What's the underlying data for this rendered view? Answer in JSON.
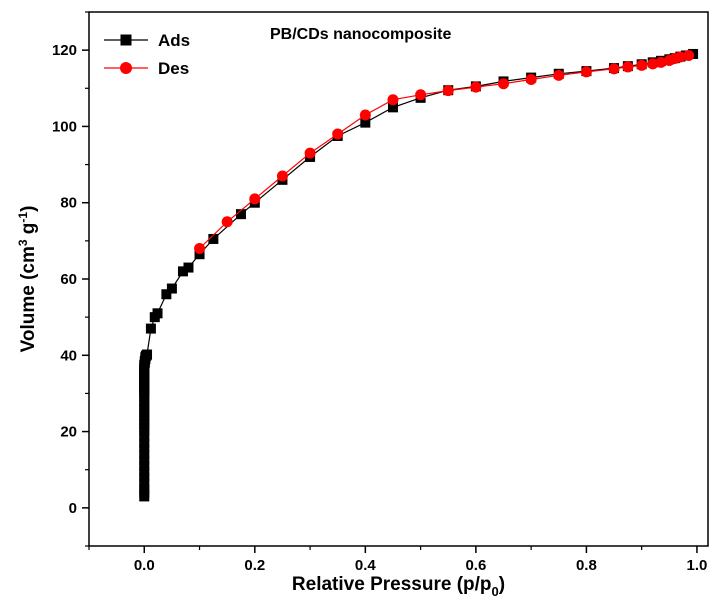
{
  "chart_data": {
    "type": "line",
    "title": "PB/CDs nanocomposite",
    "xlabel": {
      "main": "Relative Pressure (p/p",
      "sub": "0",
      "close": ")"
    },
    "ylabel": {
      "p1": "Volume (cm",
      "sup1": "3",
      "p2": " g",
      "sup2": "-1",
      "p3": ")"
    },
    "xlim": [
      -0.1,
      1.02
    ],
    "ylim": [
      -10,
      130
    ],
    "x_ticks": [
      "0.0",
      "0.2",
      "0.4",
      "0.6",
      "0.8",
      "1.0"
    ],
    "x_tick_values": [
      0.0,
      0.2,
      0.4,
      0.6,
      0.8,
      1.0
    ],
    "y_ticks": [
      "0",
      "20",
      "40",
      "60",
      "80",
      "100",
      "120"
    ],
    "y_tick_values": [
      0,
      20,
      40,
      60,
      80,
      100,
      120
    ],
    "legend_position": "top-left",
    "grid": false,
    "series": [
      {
        "name": "Ads",
        "color": "#000000",
        "marker": "square",
        "x": [
          0.0,
          0.0,
          0.0,
          0.0,
          0.0,
          0.0,
          0.0,
          0.0,
          0.0,
          0.0,
          0.0,
          0.0,
          0.0,
          0.0,
          0.0,
          0.0,
          0.0,
          0.0,
          0.0,
          0.0,
          0.0,
          0.0,
          0.0,
          0.0,
          0.0,
          0.0,
          0.0,
          0.0,
          0.0,
          0.0,
          0.0,
          0.0,
          0.0,
          0.0,
          0.0,
          0.0,
          0.0,
          0.0,
          0.001,
          0.001,
          0.002,
          0.002,
          0.003,
          0.004,
          0.005,
          0.012,
          0.019,
          0.024,
          0.04,
          0.05,
          0.07,
          0.08,
          0.1,
          0.125,
          0.175,
          0.2,
          0.25,
          0.3,
          0.35,
          0.4,
          0.45,
          0.5,
          0.55,
          0.6,
          0.65,
          0.7,
          0.75,
          0.8,
          0.85,
          0.875,
          0.9,
          0.92,
          0.935,
          0.95,
          0.96,
          0.97,
          0.98,
          0.993
        ],
        "y": [
          3,
          4,
          5,
          6.5,
          8,
          9.5,
          11,
          12.5,
          14,
          15.5,
          17,
          18.5,
          20,
          21,
          22,
          23,
          24,
          25,
          26,
          27,
          28,
          29,
          30,
          30.5,
          31,
          31.5,
          32,
          32.5,
          33,
          33.5,
          34,
          34.5,
          35,
          35.5,
          36,
          36.5,
          37,
          37.5,
          38,
          38.5,
          39,
          39.5,
          39.8,
          40,
          40.2,
          47,
          50,
          51,
          56,
          57.5,
          62,
          63,
          66.5,
          70.5,
          77,
          80,
          86,
          92,
          97.5,
          101,
          105,
          107.5,
          109.5,
          110.5,
          111.8,
          112.8,
          113.8,
          114.5,
          115.3,
          115.8,
          116.3,
          116.8,
          117.2,
          117.6,
          117.9,
          118.3,
          118.6,
          119
        ]
      },
      {
        "name": "Des",
        "color": "#ff0000",
        "marker": "circle",
        "x": [
          0.985,
          0.97,
          0.96,
          0.95,
          0.935,
          0.92,
          0.9,
          0.875,
          0.85,
          0.8,
          0.75,
          0.7,
          0.65,
          0.6,
          0.55,
          0.5,
          0.45,
          0.4,
          0.35,
          0.3,
          0.25,
          0.2,
          0.15,
          0.1
        ],
        "y": [
          118.6,
          118.2,
          117.8,
          117.3,
          116.8,
          116.4,
          116,
          115.6,
          115.1,
          114.3,
          113.4,
          112.3,
          111.2,
          110.3,
          109.4,
          108.3,
          107,
          103,
          98,
          93,
          87,
          81,
          75,
          68
        ]
      }
    ]
  }
}
